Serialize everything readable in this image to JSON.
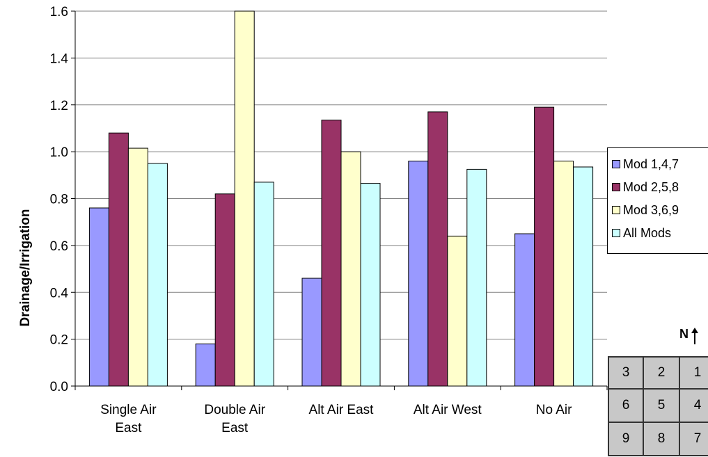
{
  "chart_data": {
    "type": "bar",
    "categories": [
      [
        "Single Air",
        "East"
      ],
      [
        "Double Air",
        "East"
      ],
      [
        "Alt Air East"
      ],
      [
        "Alt Air West"
      ],
      [
        "No Air"
      ]
    ],
    "series": [
      {
        "name": "Mod 1,4,7",
        "color": "#9999ff",
        "values": [
          0.76,
          0.18,
          0.46,
          0.96,
          0.65
        ]
      },
      {
        "name": "Mod 2,5,8",
        "color": "#993366",
        "values": [
          1.08,
          0.82,
          1.135,
          1.17,
          1.19
        ]
      },
      {
        "name": "Mod 3,6,9",
        "color": "#ffffcc",
        "values": [
          1.015,
          1.6,
          1.0,
          0.64,
          0.96
        ]
      },
      {
        "name": "All Mods",
        "color": "#ccffff",
        "values": [
          0.95,
          0.87,
          0.865,
          0.925,
          0.935
        ]
      }
    ],
    "title": "",
    "xlabel": "",
    "ylabel": "Drainage/Irrigation",
    "ylim": [
      0,
      1.6
    ],
    "yticks": [
      "0.0",
      "0.2",
      "0.4",
      "0.6",
      "0.8",
      "1.0",
      "1.2",
      "1.4",
      "1.6"
    ],
    "grid": true,
    "legend_position": "right"
  },
  "diagram": {
    "north_label": "N",
    "cells": [
      [
        "3",
        "2",
        "1"
      ],
      [
        "6",
        "5",
        "4"
      ],
      [
        "9",
        "8",
        "7"
      ]
    ],
    "cell_color": "#c8c8c8"
  }
}
